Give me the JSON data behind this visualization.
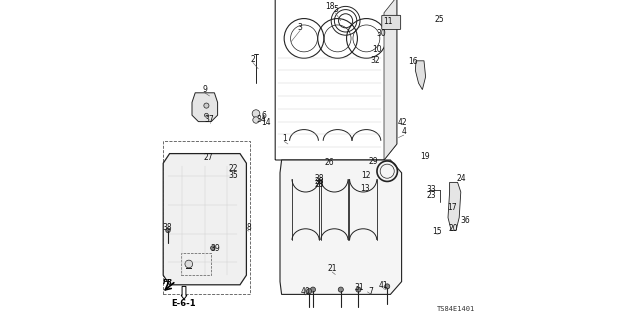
{
  "title": "",
  "background_color": "#ffffff",
  "diagram_code": "TS84E1401",
  "page_code": "E-6-1",
  "fig_width": 6.4,
  "fig_height": 3.2,
  "dpi": 100,
  "line_color": "#222222",
  "text_color": "#111111",
  "light_gray": "#aaaaaa",
  "mid_gray": "#888888"
}
